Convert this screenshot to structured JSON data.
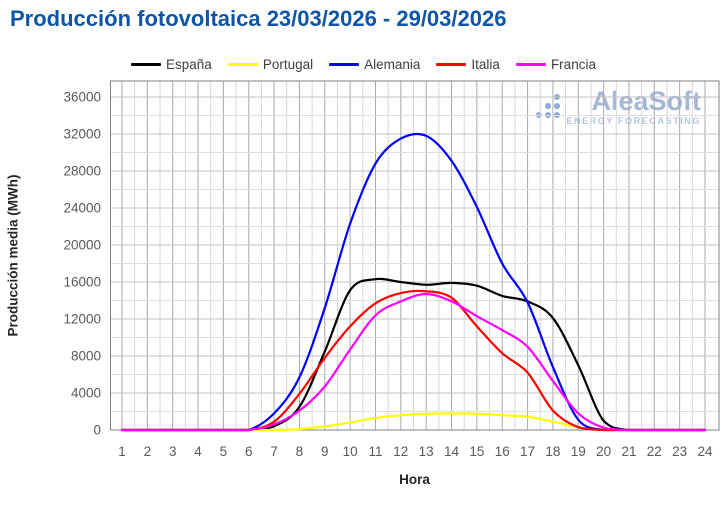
{
  "title": "Producción fotovoltaica 23/03/2026 - 29/03/2026",
  "title_color": "#0E55A7",
  "watermark": {
    "name": "AleaSoft",
    "subtitle": "ENERGY FORECASTING",
    "name_color": "#A3B7DB",
    "subtitle_color": "#B4C4E0",
    "dots_color": "#8FA9D3"
  },
  "chart_data": {
    "type": "line",
    "x": [
      1,
      2,
      3,
      4,
      5,
      6,
      7,
      8,
      9,
      10,
      11,
      12,
      13,
      14,
      15,
      16,
      17,
      18,
      19,
      20,
      21,
      22,
      23,
      24
    ],
    "xlabel": "Hora",
    "ylabel": "Producción media (MWh)",
    "ylim": [
      0,
      37800
    ],
    "yticks": [
      0,
      4000,
      8000,
      12000,
      16000,
      20000,
      24000,
      28000,
      32000,
      36000
    ],
    "y_minor_step": 2000,
    "x_minor_step": 0.5,
    "grid": true,
    "legend_position": "top",
    "series": [
      {
        "name": "España",
        "color": "#000000",
        "values": [
          0,
          0,
          0,
          0,
          0,
          0,
          400,
          2500,
          8500,
          15100,
          16300,
          16000,
          15700,
          15900,
          15600,
          14500,
          13900,
          12100,
          7000,
          1000,
          0,
          0,
          0,
          0
        ]
      },
      {
        "name": "Portugal",
        "color": "#FFFF00",
        "values": [
          0,
          0,
          0,
          0,
          0,
          0,
          0,
          100,
          400,
          800,
          1300,
          1600,
          1750,
          1800,
          1750,
          1600,
          1450,
          900,
          300,
          50,
          0,
          0,
          0,
          0
        ]
      },
      {
        "name": "Alemania",
        "color": "#0000FF",
        "values": [
          0,
          0,
          0,
          0,
          0,
          0,
          1800,
          5700,
          13200,
          22300,
          28800,
          31500,
          31800,
          29100,
          24100,
          18000,
          13800,
          6800,
          1100,
          0,
          0,
          0,
          0,
          0
        ]
      },
      {
        "name": "Italia",
        "color": "#FF0000",
        "values": [
          0,
          0,
          0,
          0,
          0,
          0,
          900,
          3900,
          7800,
          11200,
          13700,
          14800,
          15000,
          14300,
          11200,
          8300,
          6200,
          2100,
          300,
          0,
          0,
          0,
          0,
          0
        ]
      },
      {
        "name": "Francia",
        "color": "#FF00FF",
        "values": [
          0,
          0,
          0,
          0,
          0,
          0,
          600,
          2100,
          4700,
          8700,
          12400,
          13900,
          14700,
          13900,
          12300,
          10800,
          9000,
          5300,
          1800,
          250,
          0,
          0,
          0,
          0
        ]
      }
    ]
  }
}
